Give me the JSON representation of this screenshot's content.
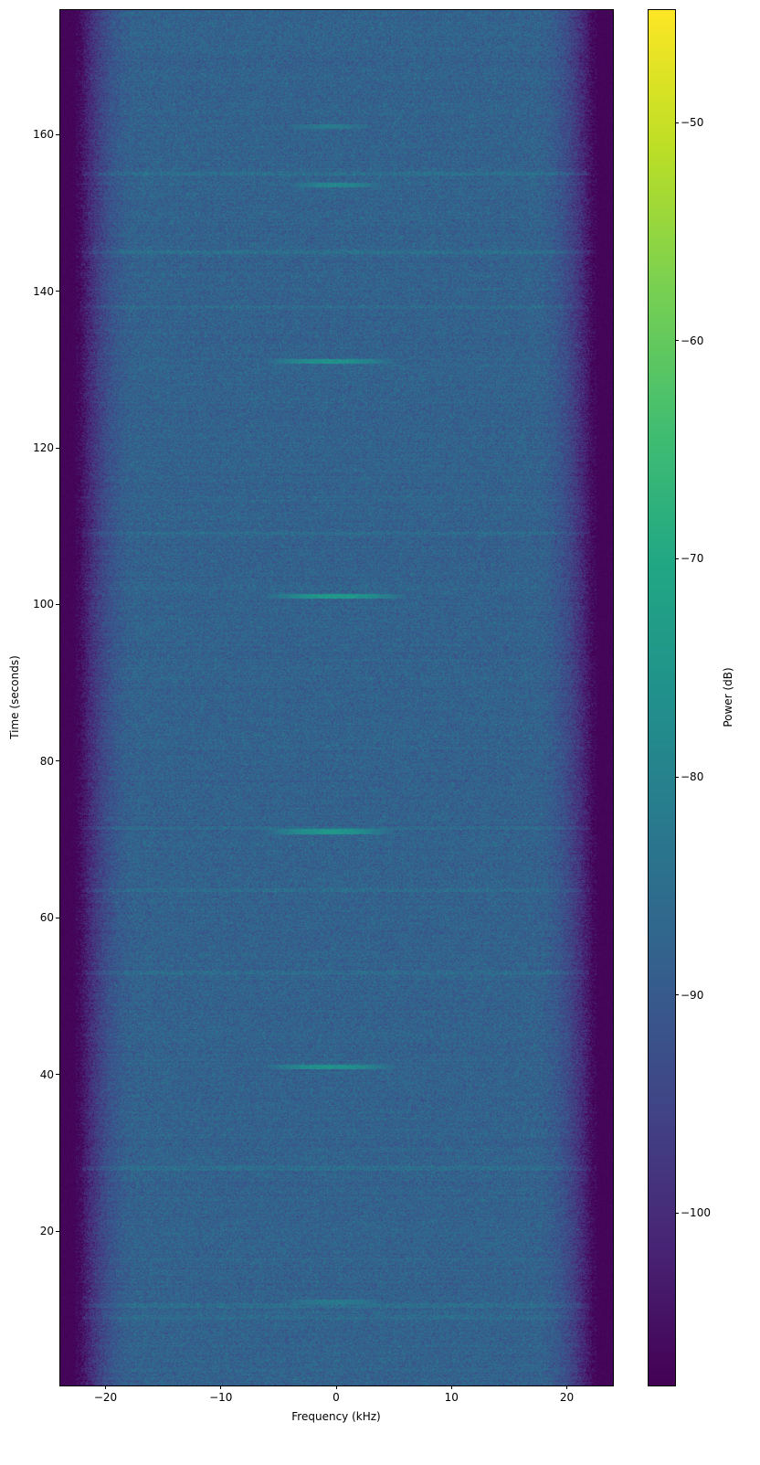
{
  "chart_data": {
    "type": "heatmap",
    "subtype": "spectrogram",
    "xlabel": "Frequency (kHz)",
    "ylabel": "Time (seconds)",
    "colorbar_label": "Power (dB)",
    "colormap": "viridis",
    "xlim": [
      -24,
      24
    ],
    "ylim": [
      0.3,
      176
    ],
    "clim": [
      -107.9,
      -44.8
    ],
    "xticks": [
      -20,
      -10,
      0,
      10,
      20
    ],
    "xtick_labels": [
      "−20",
      "−10",
      "0",
      "10",
      "20"
    ],
    "yticks": [
      20,
      40,
      60,
      80,
      100,
      120,
      140,
      160
    ],
    "ytick_labels": [
      "20",
      "40",
      "60",
      "80",
      "100",
      "120",
      "140",
      "160"
    ],
    "cticks": [
      -50,
      -60,
      -70,
      -80,
      -90,
      -100
    ],
    "ctick_labels": [
      "−50",
      "−60",
      "−70",
      "−80",
      "−90",
      "−100"
    ],
    "grid": false,
    "noise_floor_db": -88,
    "band_edge_khz": 22,
    "out_of_band_db": -107,
    "bursts": [
      {
        "time": 11,
        "freq_range": [
          -3,
          3
        ],
        "power_db": -82
      },
      {
        "time": 41,
        "freq_range": [
          -5,
          4
        ],
        "power_db": -76
      },
      {
        "time": 71,
        "freq_range": [
          -5,
          4
        ],
        "power_db": -75
      },
      {
        "time": 101,
        "freq_range": [
          -5,
          5
        ],
        "power_db": -74
      },
      {
        "time": 131,
        "freq_range": [
          -5,
          4
        ],
        "power_db": -76
      },
      {
        "time": 153.5,
        "freq_range": [
          -3,
          3
        ],
        "power_db": -79
      },
      {
        "time": 161,
        "freq_range": [
          -3,
          2
        ],
        "power_db": -82
      }
    ],
    "broadband_lines_s": [
      9,
      10.5,
      28,
      53,
      63.5,
      71.5,
      109,
      138,
      145,
      155
    ]
  }
}
